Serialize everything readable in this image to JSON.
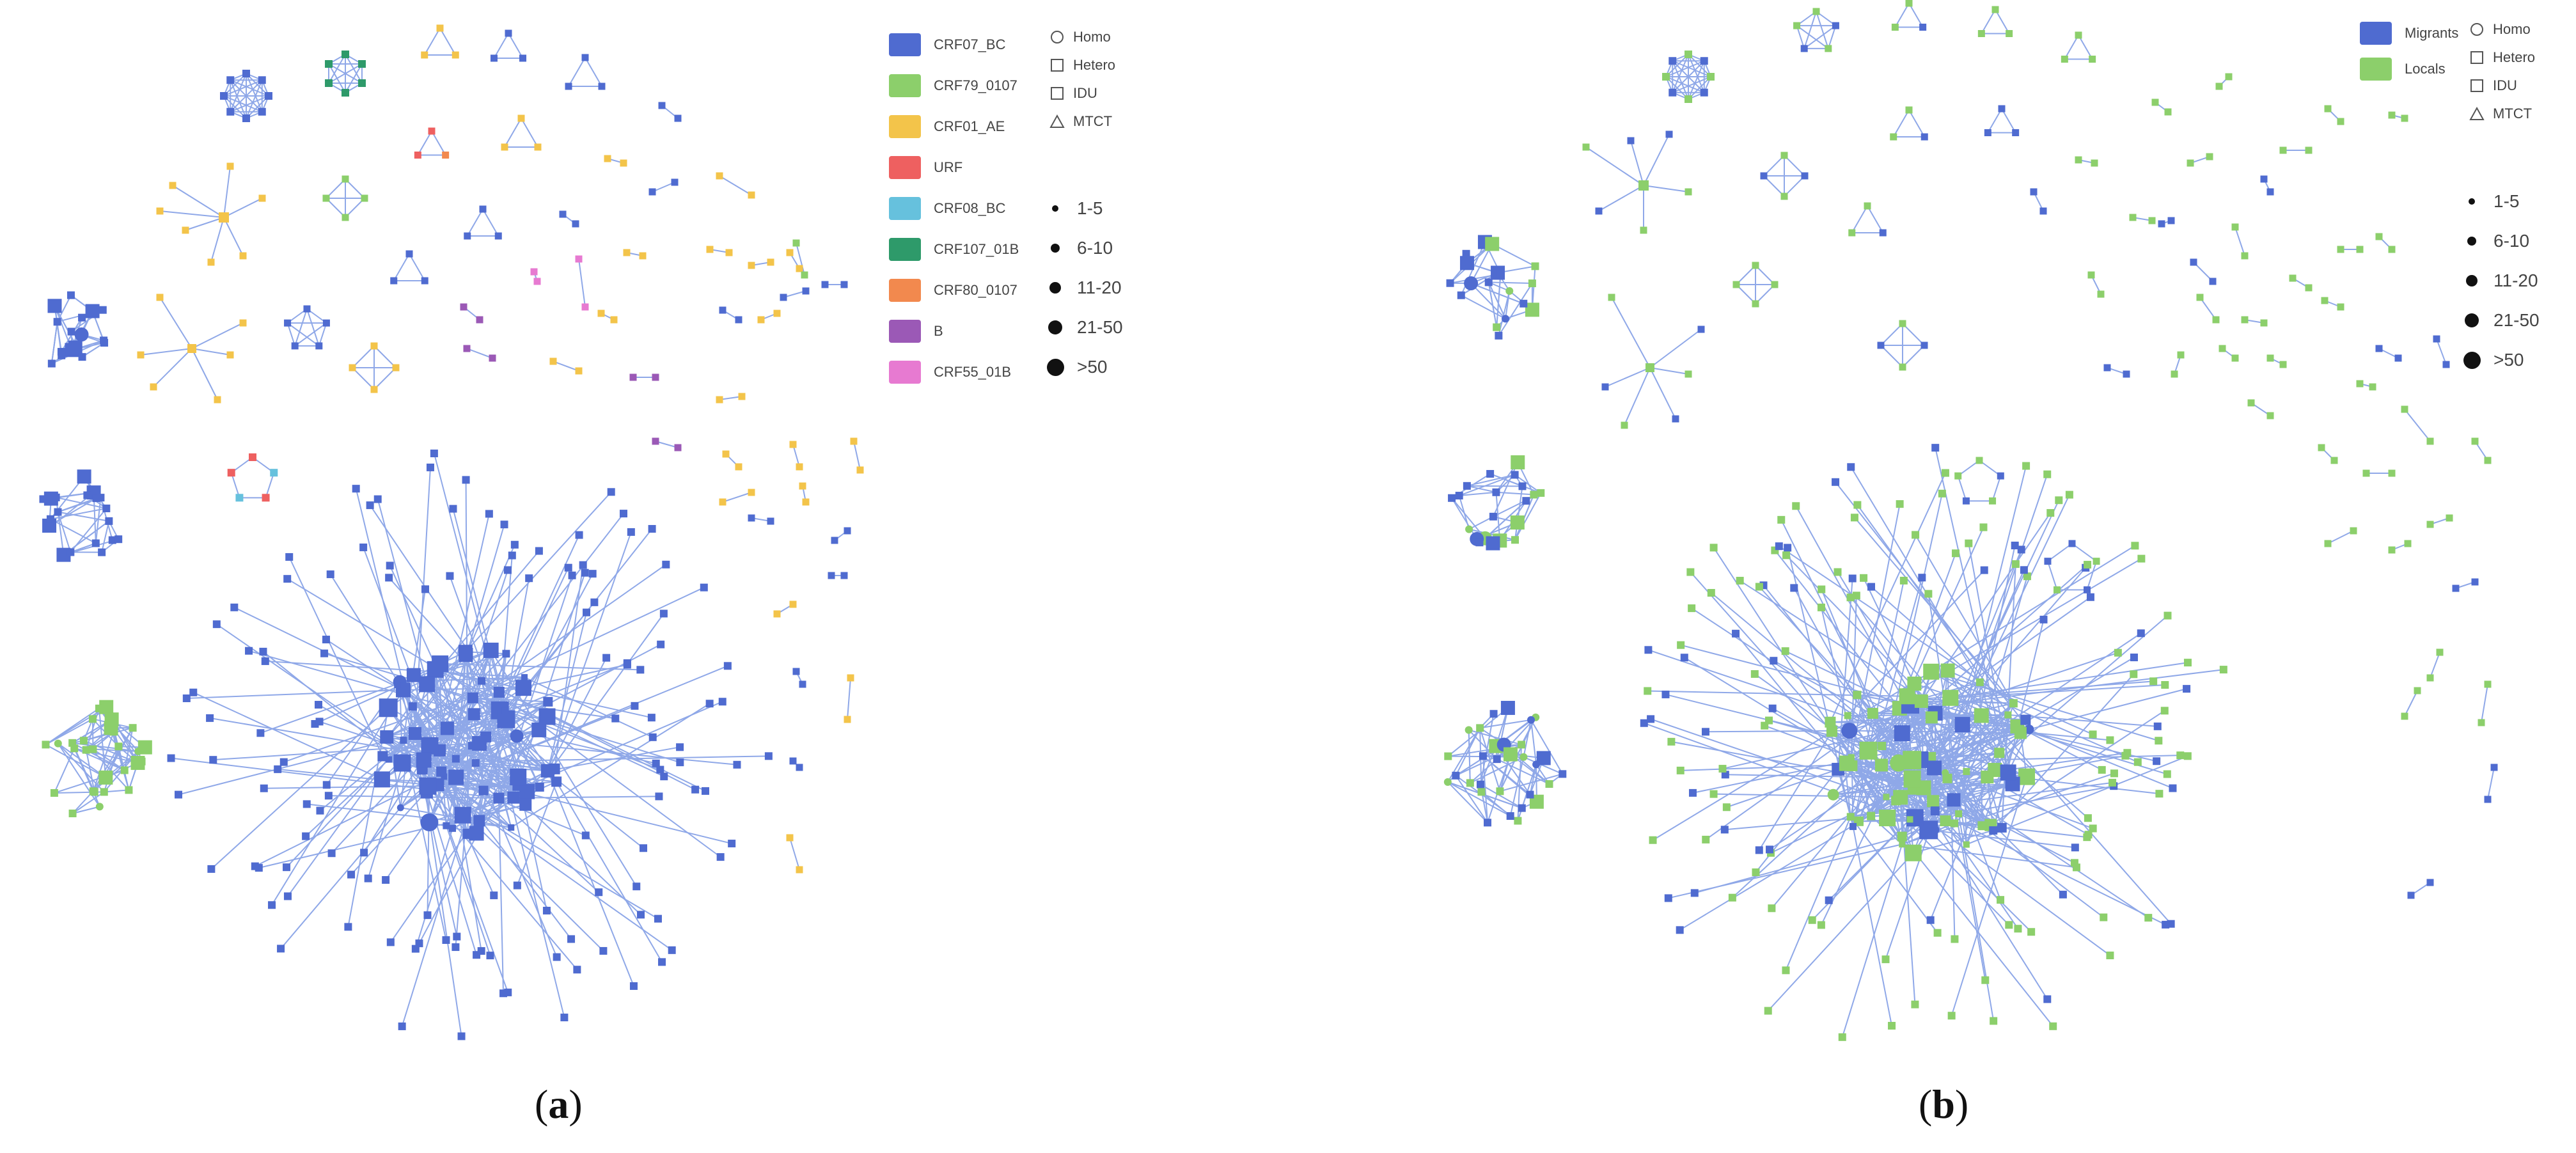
{
  "colors": {
    "edge": "#8fa8e8",
    "CRF07_BC": "#4f6bd0",
    "CRF79_0107": "#8ccf6b",
    "CRF01_AE": "#f3c44a",
    "URF": "#ee6060",
    "CRF08_BC": "#66c1dd",
    "CRF107_01B": "#2e9a6a",
    "CRF80_0107": "#f2894e",
    "B": "#9b59b6",
    "CRF55_01B": "#e77ad1",
    "Migrants": "#4f6bd0",
    "Locals": "#8ccf6b"
  },
  "panel_a": {
    "caption": "a",
    "subtype_legend": [
      {
        "label": "CRF07_BC",
        "color": "#4f6bd0"
      },
      {
        "label": "CRF79_0107",
        "color": "#8ccf6b"
      },
      {
        "label": "CRF01_AE",
        "color": "#f3c44a"
      },
      {
        "label": "URF",
        "color": "#ee6060"
      },
      {
        "label": "CRF08_BC",
        "color": "#66c1dd"
      },
      {
        "label": "CRF107_01B",
        "color": "#2e9a6a"
      },
      {
        "label": "CRF80_0107",
        "color": "#f2894e"
      },
      {
        "label": "B",
        "color": "#9b59b6"
      },
      {
        "label": "CRF55_01B",
        "color": "#e77ad1"
      }
    ],
    "shape_legend": [
      {
        "label": "Homo",
        "icon": "circle"
      },
      {
        "label": "Hetero",
        "icon": "square"
      },
      {
        "label": "IDU",
        "icon": "square"
      },
      {
        "label": "MTCT",
        "icon": "triangle"
      }
    ],
    "size_legend": [
      "1-5",
      "6-10",
      "11-20",
      "21-50",
      ">50"
    ]
  },
  "panel_b": {
    "caption": "b",
    "group_legend": [
      {
        "label": "Migrants",
        "color": "#4f6bd0"
      },
      {
        "label": "Locals",
        "color": "#8ccf6b"
      }
    ],
    "shape_legend": [
      {
        "label": "Homo",
        "icon": "circle"
      },
      {
        "label": "Hetero",
        "icon": "square"
      },
      {
        "label": "IDU",
        "icon": "square"
      },
      {
        "label": "MTCT",
        "icon": "triangle"
      }
    ],
    "size_legend": [
      "1-5",
      "6-10",
      "11-20",
      "21-50",
      ">50"
    ]
  }
}
